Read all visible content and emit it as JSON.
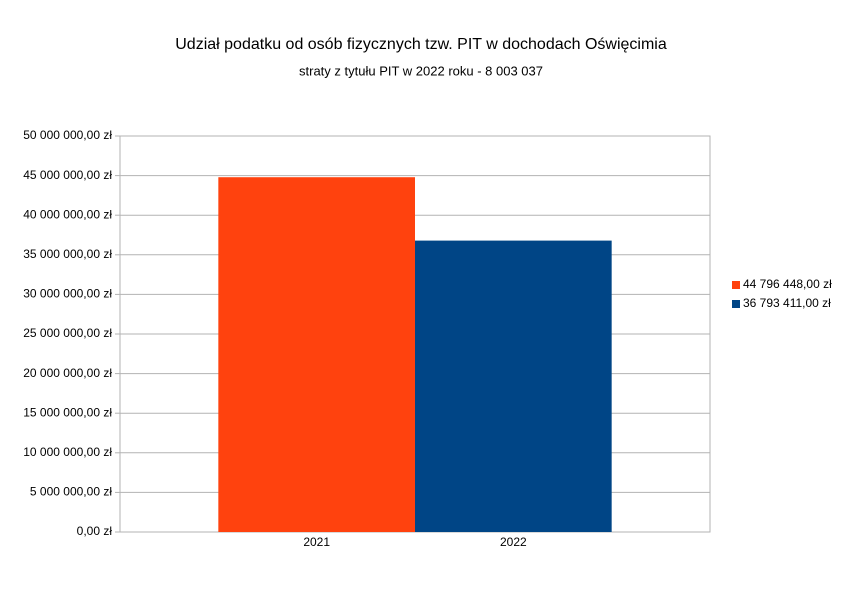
{
  "chart_data": {
    "type": "bar",
    "title": "Udział podatku od osób fizycznych tzw. PIT w dochodach Oświęcimia",
    "subtitle": "straty z tytułu PIT w 2022 roku - 8 003 037",
    "categories": [
      "2021",
      "2022"
    ],
    "values": [
      44796448,
      36793411
    ],
    "value_labels": [
      "44 796 448,00 zł",
      "36 793 411,00 zł"
    ],
    "colors": [
      "#ff420e",
      "#004586"
    ],
    "ylim": [
      0,
      50000000
    ],
    "yticks": [
      {
        "value": 0,
        "label": "0,00 zł"
      },
      {
        "value": 5000000,
        "label": "5 000 000,00 zł"
      },
      {
        "value": 10000000,
        "label": "10 000 000,00 zł"
      },
      {
        "value": 15000000,
        "label": "15 000 000,00 zł"
      },
      {
        "value": 20000000,
        "label": "20 000 000,00 zł"
      },
      {
        "value": 25000000,
        "label": "25 000 000,00 zł"
      },
      {
        "value": 30000000,
        "label": "30 000 000,00 zł"
      },
      {
        "value": 35000000,
        "label": "35 000 000,00 zł"
      },
      {
        "value": 40000000,
        "label": "40 000 000,00 zł"
      },
      {
        "value": 45000000,
        "label": "45 000 000,00 zł"
      },
      {
        "value": 50000000,
        "label": "50 000 000,00 zł"
      }
    ],
    "grid": true,
    "legend": "right"
  }
}
